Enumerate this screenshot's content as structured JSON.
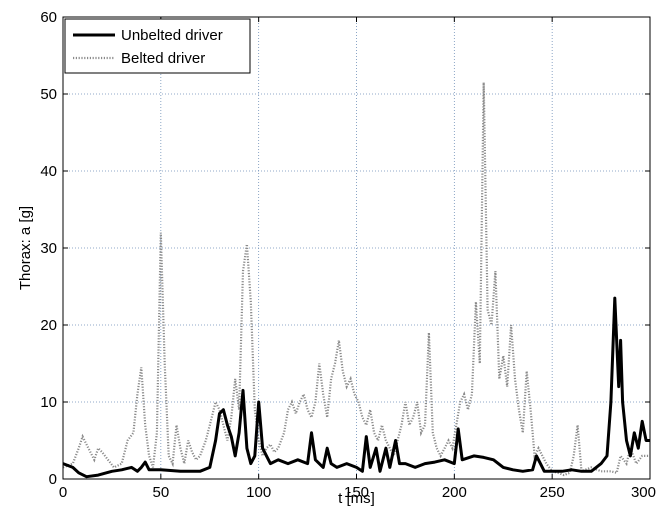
{
  "chart_data": {
    "type": "line",
    "title": "",
    "xlabel": "t [ms]",
    "ylabel": "Thorax: a [g]",
    "xlim": [
      0,
      300
    ],
    "ylim": [
      0,
      60
    ],
    "xticks": [
      0,
      50,
      100,
      150,
      200,
      250,
      300
    ],
    "yticks": [
      0,
      10,
      20,
      30,
      40,
      50,
      60
    ],
    "grid": true,
    "legend_position": "top-left",
    "series": [
      {
        "name": "Unbelted driver",
        "style": "solid",
        "color": "#000000",
        "points": [
          [
            0,
            2
          ],
          [
            5,
            1.5
          ],
          [
            8,
            0.8
          ],
          [
            12,
            0.3
          ],
          [
            18,
            0.5
          ],
          [
            25,
            1
          ],
          [
            30,
            1.2
          ],
          [
            35,
            1.5
          ],
          [
            38,
            1
          ],
          [
            40,
            1.5
          ],
          [
            42,
            2.2
          ],
          [
            44,
            1.2
          ],
          [
            50,
            1.2
          ],
          [
            60,
            1
          ],
          [
            70,
            1
          ],
          [
            75,
            1.5
          ],
          [
            78,
            5
          ],
          [
            80,
            8.5
          ],
          [
            82,
            9
          ],
          [
            84,
            7
          ],
          [
            86,
            5.5
          ],
          [
            88,
            3
          ],
          [
            90,
            6
          ],
          [
            92,
            11.5
          ],
          [
            94,
            4
          ],
          [
            96,
            2
          ],
          [
            98,
            3
          ],
          [
            100,
            10
          ],
          [
            102,
            4
          ],
          [
            104,
            3
          ],
          [
            106,
            2
          ],
          [
            110,
            2.5
          ],
          [
            115,
            2
          ],
          [
            120,
            2.5
          ],
          [
            125,
            2
          ],
          [
            127,
            6
          ],
          [
            129,
            2.5
          ],
          [
            133,
            1.5
          ],
          [
            135,
            4
          ],
          [
            137,
            2
          ],
          [
            140,
            1.5
          ],
          [
            145,
            2
          ],
          [
            150,
            1.5
          ],
          [
            153,
            1
          ],
          [
            155,
            5.5
          ],
          [
            157,
            1.5
          ],
          [
            160,
            4
          ],
          [
            162,
            1
          ],
          [
            165,
            4
          ],
          [
            167,
            1.5
          ],
          [
            170,
            5
          ],
          [
            172,
            2
          ],
          [
            175,
            2
          ],
          [
            180,
            1.5
          ],
          [
            185,
            2
          ],
          [
            190,
            2.2
          ],
          [
            195,
            2.5
          ],
          [
            200,
            2
          ],
          [
            202,
            6.5
          ],
          [
            204,
            2.5
          ],
          [
            210,
            3
          ],
          [
            215,
            2.8
          ],
          [
            220,
            2.5
          ],
          [
            225,
            1.5
          ],
          [
            230,
            1.2
          ],
          [
            235,
            1
          ],
          [
            240,
            1.2
          ],
          [
            242,
            3
          ],
          [
            244,
            2
          ],
          [
            246,
            1
          ],
          [
            250,
            1
          ],
          [
            255,
            1
          ],
          [
            260,
            1.2
          ],
          [
            265,
            1
          ],
          [
            270,
            1
          ],
          [
            275,
            2
          ],
          [
            278,
            3
          ],
          [
            280,
            10
          ],
          [
            282,
            23.5
          ],
          [
            284,
            12
          ],
          [
            285,
            18
          ],
          [
            286,
            10
          ],
          [
            288,
            5
          ],
          [
            290,
            3
          ],
          [
            292,
            6
          ],
          [
            294,
            4
          ],
          [
            296,
            7.5
          ],
          [
            298,
            5
          ],
          [
            300,
            5
          ]
        ]
      },
      {
        "name": "Belted driver",
        "style": "dotted",
        "color": "#8a8a8a",
        "points": [
          [
            0,
            1.5
          ],
          [
            5,
            2
          ],
          [
            8,
            4
          ],
          [
            10,
            5.5
          ],
          [
            13,
            4
          ],
          [
            16,
            2.5
          ],
          [
            18,
            4
          ],
          [
            20,
            3.5
          ],
          [
            23,
            2.5
          ],
          [
            26,
            1.5
          ],
          [
            30,
            2
          ],
          [
            33,
            5
          ],
          [
            36,
            6
          ],
          [
            38,
            11
          ],
          [
            40,
            14.5
          ],
          [
            42,
            7
          ],
          [
            44,
            3
          ],
          [
            46,
            1.5
          ],
          [
            48,
            6
          ],
          [
            50,
            32
          ],
          [
            52,
            15
          ],
          [
            54,
            3
          ],
          [
            56,
            2
          ],
          [
            58,
            7
          ],
          [
            60,
            4
          ],
          [
            62,
            2
          ],
          [
            64,
            5
          ],
          [
            66,
            3.5
          ],
          [
            68,
            2.5
          ],
          [
            70,
            3
          ],
          [
            73,
            5
          ],
          [
            75,
            7
          ],
          [
            78,
            10
          ],
          [
            80,
            9
          ],
          [
            82,
            7
          ],
          [
            84,
            5
          ],
          [
            86,
            8
          ],
          [
            88,
            13
          ],
          [
            90,
            9
          ],
          [
            92,
            27
          ],
          [
            94,
            30.5
          ],
          [
            96,
            23
          ],
          [
            98,
            9
          ],
          [
            100,
            5
          ],
          [
            102,
            3
          ],
          [
            104,
            4
          ],
          [
            106,
            4.5
          ],
          [
            108,
            3.5
          ],
          [
            110,
            4
          ],
          [
            113,
            6
          ],
          [
            115,
            9
          ],
          [
            117,
            10
          ],
          [
            119,
            8.5
          ],
          [
            121,
            10
          ],
          [
            123,
            11
          ],
          [
            125,
            9
          ],
          [
            127,
            8
          ],
          [
            129,
            10
          ],
          [
            131,
            15
          ],
          [
            133,
            11
          ],
          [
            135,
            8
          ],
          [
            137,
            13
          ],
          [
            139,
            15
          ],
          [
            141,
            18
          ],
          [
            143,
            14
          ],
          [
            145,
            12
          ],
          [
            147,
            13
          ],
          [
            149,
            11
          ],
          [
            151,
            10
          ],
          [
            153,
            8
          ],
          [
            155,
            7
          ],
          [
            157,
            9
          ],
          [
            159,
            6
          ],
          [
            161,
            5
          ],
          [
            163,
            7
          ],
          [
            165,
            5
          ],
          [
            167,
            4
          ],
          [
            169,
            3
          ],
          [
            171,
            5
          ],
          [
            173,
            7
          ],
          [
            175,
            10
          ],
          [
            177,
            7
          ],
          [
            179,
            8
          ],
          [
            181,
            10
          ],
          [
            183,
            6
          ],
          [
            185,
            7
          ],
          [
            187,
            19
          ],
          [
            189,
            6
          ],
          [
            191,
            4
          ],
          [
            193,
            3
          ],
          [
            195,
            4
          ],
          [
            197,
            5
          ],
          [
            199,
            4
          ],
          [
            201,
            7
          ],
          [
            203,
            10
          ],
          [
            205,
            11
          ],
          [
            207,
            9
          ],
          [
            209,
            11
          ],
          [
            211,
            23
          ],
          [
            213,
            15
          ],
          [
            215,
            51.5
          ],
          [
            217,
            22
          ],
          [
            219,
            20
          ],
          [
            221,
            27
          ],
          [
            223,
            13
          ],
          [
            225,
            16
          ],
          [
            227,
            12
          ],
          [
            229,
            20
          ],
          [
            231,
            13
          ],
          [
            233,
            9
          ],
          [
            235,
            6
          ],
          [
            237,
            14
          ],
          [
            239,
            9
          ],
          [
            241,
            3
          ],
          [
            243,
            4
          ],
          [
            245,
            3
          ],
          [
            247,
            2
          ],
          [
            250,
            1
          ],
          [
            253,
            0.8
          ],
          [
            256,
            0.5
          ],
          [
            259,
            0.8
          ],
          [
            261,
            3
          ],
          [
            263,
            7
          ],
          [
            265,
            1
          ],
          [
            270,
            1.5
          ],
          [
            275,
            1
          ],
          [
            280,
            1
          ],
          [
            283,
            0.8
          ],
          [
            285,
            3
          ],
          [
            288,
            2
          ],
          [
            290,
            4
          ],
          [
            293,
            2
          ],
          [
            296,
            3
          ],
          [
            300,
            3
          ]
        ]
      }
    ]
  }
}
